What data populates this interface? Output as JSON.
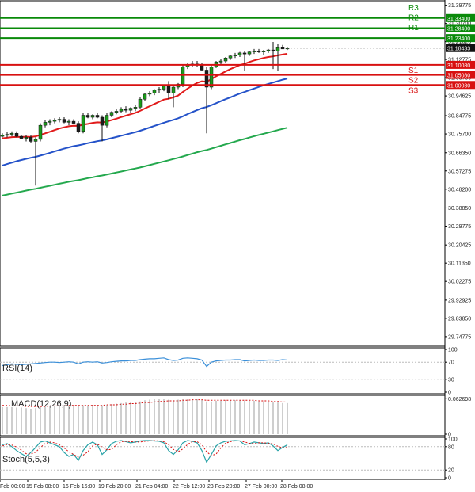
{
  "chart_data": {
    "type": "candlestick",
    "colors": {
      "bull": "#1a9a1a",
      "bear": "#1c1c1c",
      "ma_fast": "#e11b1b",
      "ma_mid": "#2452c9",
      "ma_slow": "#23a84d",
      "resistance": "#0a8a0a",
      "support": "#d81111",
      "rsi": "#3a8fd9",
      "macd_bar": "#9c9c9c",
      "macd_signal": "#d81111",
      "stoch_main": "#29a3a8",
      "stoch_signal": "#d81111"
    },
    "price_axis": {
      "range": [
        29.7,
        31.42
      ],
      "ticks": [
        "31.39775",
        "31.30700",
        "31.21625",
        "31.12775",
        "31.03700",
        "30.94625",
        "30.84775",
        "30.75700",
        "30.66350",
        "30.57275",
        "30.48200",
        "30.38850",
        "30.29775",
        "30.20425",
        "30.11350",
        "30.02275",
        "29.92925",
        "29.83850",
        "29.74775"
      ],
      "current_price": "31.18433"
    },
    "levels": [
      {
        "label": "R3",
        "value": "31.33400",
        "kind": "resistance"
      },
      {
        "label": "R2",
        "value": "31.28400",
        "kind": "resistance"
      },
      {
        "label": "R1",
        "value": "31.23400",
        "kind": "resistance"
      },
      {
        "label": "S1",
        "value": "31.10080",
        "kind": "support"
      },
      {
        "label": "S2",
        "value": "31.05080",
        "kind": "support"
      },
      {
        "label": "S3",
        "value": "31.00080",
        "kind": "support"
      }
    ],
    "time_labels": [
      "Feb 00:00",
      "15 Feb 08:00",
      "16 Feb 16:00",
      "19 Feb 20:00",
      "21 Feb 04:00",
      "22 Feb 12:00",
      "23 Feb 20:00",
      "27 Feb 00:00",
      "28 Feb 08:00"
    ],
    "candles": [
      [
        30.745,
        30.76,
        30.74,
        30.75
      ],
      [
        30.75,
        30.765,
        30.74,
        30.755
      ],
      [
        30.755,
        30.77,
        30.745,
        30.76
      ],
      [
        30.76,
        30.77,
        30.74,
        30.745
      ],
      [
        30.745,
        30.75,
        30.73,
        30.735
      ],
      [
        30.735,
        30.75,
        30.72,
        30.74
      ],
      [
        30.74,
        30.75,
        30.71,
        30.72
      ],
      [
        30.72,
        30.74,
        30.5,
        30.73
      ],
      [
        30.73,
        30.81,
        30.72,
        30.8
      ],
      [
        30.8,
        30.825,
        30.79,
        30.815
      ],
      [
        30.815,
        30.83,
        30.8,
        30.82
      ],
      [
        30.82,
        30.835,
        30.81,
        30.825
      ],
      [
        30.825,
        30.84,
        30.815,
        30.83
      ],
      [
        30.83,
        30.84,
        30.81,
        30.815
      ],
      [
        30.815,
        30.83,
        30.8,
        30.82
      ],
      [
        30.82,
        30.83,
        30.805,
        30.81
      ],
      [
        30.81,
        30.82,
        30.76,
        30.77
      ],
      [
        30.77,
        30.86,
        30.76,
        30.85
      ],
      [
        30.85,
        30.86,
        30.835,
        30.84
      ],
      [
        30.84,
        30.855,
        30.83,
        30.85
      ],
      [
        30.85,
        30.86,
        30.835,
        30.84
      ],
      [
        30.84,
        30.85,
        30.72,
        30.8
      ],
      [
        30.8,
        30.86,
        30.79,
        30.85
      ],
      [
        30.85,
        30.87,
        30.84,
        30.865
      ],
      [
        30.865,
        30.88,
        30.855,
        30.87
      ],
      [
        30.87,
        30.89,
        30.86,
        30.88
      ],
      [
        30.88,
        30.895,
        30.865,
        30.875
      ],
      [
        30.875,
        30.89,
        30.86,
        30.885
      ],
      [
        30.885,
        30.9,
        30.87,
        30.89
      ],
      [
        30.89,
        30.94,
        30.88,
        30.93
      ],
      [
        30.93,
        30.96,
        30.92,
        30.955
      ],
      [
        30.955,
        30.97,
        30.945,
        30.96
      ],
      [
        30.96,
        30.98,
        30.95,
        30.975
      ],
      [
        30.975,
        30.99,
        30.96,
        30.98
      ],
      [
        30.98,
        31.0,
        30.97,
        30.995
      ],
      [
        30.995,
        31.02,
        30.93,
        30.96
      ],
      [
        30.96,
        31.0,
        30.89,
        30.99
      ],
      [
        30.99,
        31.01,
        30.98,
        31.005
      ],
      [
        31.005,
        31.1,
        30.99,
        31.09
      ],
      [
        31.09,
        31.11,
        31.08,
        31.1
      ],
      [
        31.1,
        31.12,
        31.09,
        31.105
      ],
      [
        31.105,
        31.12,
        31.09,
        31.1
      ],
      [
        31.1,
        31.11,
        31.07,
        31.075
      ],
      [
        31.075,
        31.09,
        30.76,
        30.99
      ],
      [
        30.99,
        31.1,
        30.98,
        31.09
      ],
      [
        31.09,
        31.12,
        31.085,
        31.115
      ],
      [
        31.115,
        31.13,
        31.1,
        31.12
      ],
      [
        31.12,
        31.14,
        31.11,
        31.135
      ],
      [
        31.135,
        31.15,
        31.125,
        31.145
      ],
      [
        31.145,
        31.16,
        31.135,
        31.15
      ],
      [
        31.15,
        31.165,
        31.14,
        31.16
      ],
      [
        31.16,
        31.17,
        31.07,
        31.155
      ],
      [
        31.155,
        31.17,
        31.145,
        31.165
      ],
      [
        31.165,
        31.18,
        31.155,
        31.17
      ],
      [
        31.17,
        31.18,
        31.16,
        31.165
      ],
      [
        31.165,
        31.175,
        31.15,
        31.17
      ],
      [
        31.17,
        31.18,
        31.16,
        31.175
      ],
      [
        31.175,
        31.215,
        31.08,
        31.17
      ],
      [
        31.17,
        31.205,
        31.07,
        31.19
      ],
      [
        31.19,
        31.2,
        31.18,
        31.18
      ],
      [
        31.18,
        31.19,
        31.175,
        31.184
      ]
    ],
    "series": [
      {
        "values": [
          30.735,
          30.738,
          30.741,
          30.742,
          30.742,
          30.743,
          30.742,
          30.745,
          30.752,
          30.76,
          30.768,
          30.776,
          30.784,
          30.79,
          30.795,
          30.798,
          30.797,
          30.803,
          30.807,
          30.812,
          30.815,
          30.814,
          30.819,
          30.826,
          30.833,
          30.841,
          30.848,
          30.855,
          30.862,
          30.872,
          30.884,
          30.895,
          30.906,
          30.917,
          30.928,
          30.932,
          30.939,
          30.948,
          30.966,
          30.983,
          30.998,
          31.011,
          31.019,
          31.017,
          31.03,
          31.044,
          31.056,
          31.068,
          31.08,
          31.09,
          31.1,
          31.106,
          31.115,
          31.123,
          31.129,
          31.135,
          31.14,
          31.143,
          31.148,
          31.152,
          31.156
        ]
      },
      {
        "values": [
          30.6,
          30.607,
          30.614,
          30.621,
          30.627,
          30.633,
          30.638,
          30.643,
          30.649,
          30.656,
          30.663,
          30.67,
          30.677,
          30.684,
          30.69,
          30.696,
          30.7,
          30.705,
          30.711,
          30.716,
          30.721,
          30.725,
          30.73,
          30.736,
          30.742,
          30.748,
          30.754,
          30.76,
          30.766,
          30.773,
          30.781,
          30.789,
          30.797,
          30.805,
          30.813,
          30.82,
          30.827,
          30.835,
          30.845,
          30.856,
          30.866,
          30.876,
          30.885,
          30.891,
          30.9,
          30.91,
          30.92,
          30.93,
          30.939,
          30.949,
          30.958,
          30.966,
          30.975,
          30.983,
          30.991,
          30.999,
          31.006,
          31.013,
          31.02,
          31.027,
          31.033
        ]
      },
      {
        "values": [
          30.45,
          30.455,
          30.46,
          30.465,
          30.47,
          30.475,
          30.48,
          30.484,
          30.489,
          30.494,
          30.499,
          30.504,
          30.509,
          30.514,
          30.519,
          30.523,
          30.527,
          30.532,
          30.537,
          30.541,
          30.546,
          30.55,
          30.555,
          30.56,
          30.565,
          30.57,
          30.575,
          30.58,
          30.585,
          30.59,
          30.596,
          30.602,
          30.608,
          30.614,
          30.62,
          30.626,
          30.632,
          30.638,
          30.645,
          30.652,
          30.659,
          30.666,
          30.672,
          30.677,
          30.684,
          30.691,
          30.698,
          30.705,
          30.712,
          30.719,
          30.726,
          30.732,
          30.739,
          30.746,
          30.752,
          30.758,
          30.764,
          30.77,
          30.776,
          30.782,
          30.788
        ]
      }
    ],
    "rsi": {
      "label": "RSI(14)",
      "ticks": [
        "100",
        "70",
        "30",
        "0"
      ],
      "values": [
        62,
        64,
        66,
        65,
        64,
        65,
        66,
        67,
        68,
        69,
        70,
        70,
        69,
        70,
        71,
        70,
        66,
        70,
        71,
        70,
        71,
        68,
        69,
        71,
        72,
        73,
        73,
        74,
        74,
        76,
        77,
        78,
        78,
        79,
        80,
        76,
        74,
        75,
        79,
        80,
        79,
        78,
        75,
        60,
        70,
        73,
        74,
        75,
        75,
        76,
        76,
        73,
        74,
        75,
        74,
        74,
        75,
        75,
        74,
        76,
        75
      ]
    },
    "macd": {
      "label": "MACD(12,26,9)",
      "ticks": [
        "0.062698",
        "0"
      ],
      "bars": [
        0.048,
        0.048,
        0.048,
        0.047,
        0.047,
        0.046,
        0.045,
        0.046,
        0.048,
        0.049,
        0.05,
        0.05,
        0.051,
        0.051,
        0.051,
        0.051,
        0.05,
        0.051,
        0.051,
        0.052,
        0.052,
        0.051,
        0.052,
        0.053,
        0.054,
        0.055,
        0.056,
        0.056,
        0.057,
        0.058,
        0.06,
        0.061,
        0.062,
        0.062,
        0.062,
        0.061,
        0.06,
        0.061,
        0.062,
        0.063,
        0.062,
        0.062,
        0.061,
        0.058,
        0.058,
        0.059,
        0.059,
        0.06,
        0.06,
        0.06,
        0.06,
        0.059,
        0.059,
        0.059,
        0.058,
        0.058,
        0.057,
        0.056,
        0.056,
        0.055,
        0.055
      ],
      "signal": [
        0.051,
        0.051,
        0.05,
        0.05,
        0.05,
        0.049,
        0.049,
        0.049,
        0.049,
        0.049,
        0.05,
        0.05,
        0.05,
        0.05,
        0.051,
        0.051,
        0.051,
        0.051,
        0.051,
        0.051,
        0.051,
        0.051,
        0.052,
        0.052,
        0.052,
        0.053,
        0.053,
        0.054,
        0.054,
        0.055,
        0.056,
        0.056,
        0.057,
        0.058,
        0.058,
        0.059,
        0.059,
        0.059,
        0.06,
        0.06,
        0.061,
        0.061,
        0.061,
        0.06,
        0.06,
        0.06,
        0.06,
        0.06,
        0.06,
        0.06,
        0.06,
        0.06,
        0.06,
        0.06,
        0.059,
        0.059,
        0.059,
        0.058,
        0.058,
        0.057,
        0.057
      ]
    },
    "stoch": {
      "label": "Stoch(5,5,3)",
      "ticks": [
        "100",
        "80",
        "20",
        "0"
      ],
      "main": [
        85,
        88,
        80,
        70,
        62,
        55,
        65,
        78,
        92,
        95,
        90,
        85,
        80,
        65,
        55,
        60,
        45,
        70,
        85,
        92,
        85,
        60,
        72,
        88,
        94,
        96,
        93,
        90,
        92,
        95,
        96,
        96,
        95,
        94,
        90,
        70,
        60,
        72,
        90,
        96,
        94,
        90,
        70,
        40,
        60,
        82,
        90,
        94,
        95,
        96,
        95,
        85,
        88,
        92,
        90,
        88,
        90,
        82,
        70,
        78,
        85
      ],
      "signal": [
        82,
        85,
        84,
        79,
        71,
        62,
        61,
        66,
        78,
        88,
        92,
        90,
        85,
        77,
        67,
        60,
        53,
        58,
        67,
        82,
        87,
        79,
        72,
        73,
        85,
        93,
        94,
        93,
        92,
        92,
        94,
        95,
        96,
        95,
        93,
        85,
        73,
        67,
        74,
        86,
        93,
        93,
        85,
        67,
        57,
        61,
        77,
        89,
        93,
        95,
        95,
        92,
        89,
        88,
        90,
        90,
        89,
        87,
        81,
        77,
        78
      ]
    }
  }
}
